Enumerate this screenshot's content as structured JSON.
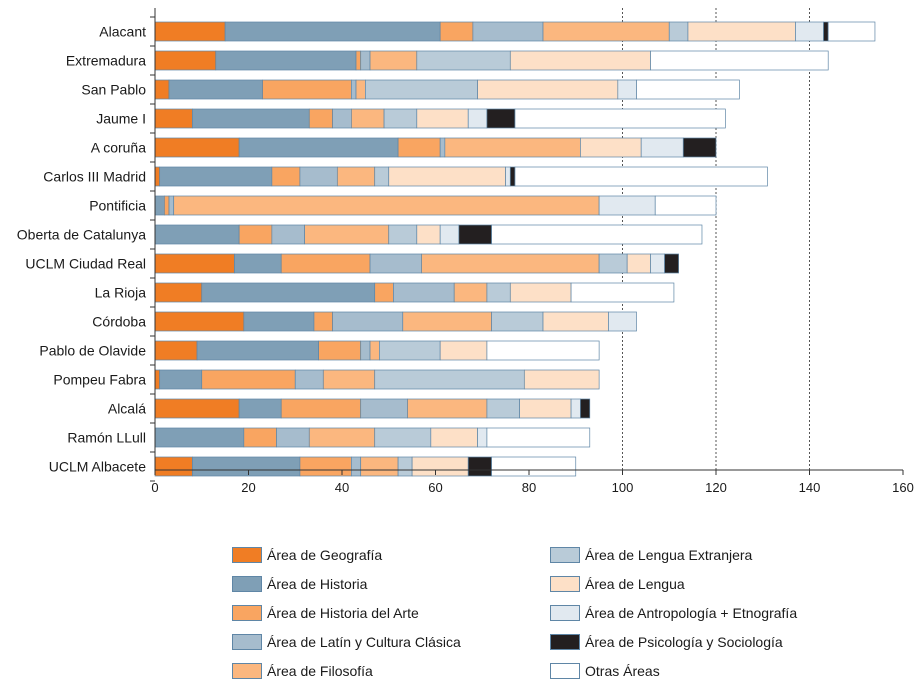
{
  "chart_data": {
    "type": "bar",
    "orientation": "horizontal",
    "stacked": true,
    "title": "",
    "xlabel": "",
    "ylabel": "",
    "xlim": [
      0,
      160
    ],
    "xticks": [
      "0",
      "20",
      "40",
      "60",
      "80",
      "100",
      "120",
      "140",
      "160"
    ],
    "grid": "dashed vertical lines at 100, 120, 140",
    "legend_position": "bottom",
    "categories": [
      "Alacant",
      "Extremadura",
      "San Pablo",
      "Jaume I",
      "A coruña",
      "Carlos III Madrid",
      "Pontificia",
      "Oberta de Catalunya",
      "UCLM Ciudad Real",
      "La Rioja",
      "Córdoba",
      "Pablo de Olavide",
      "Pompeu Fabra",
      "Alcalá",
      "Ramón LLull",
      "UCLM Albacete"
    ],
    "series": [
      {
        "name": "Área de Geografía",
        "color": "#f07d24",
        "values": [
          15,
          13,
          3,
          8,
          18,
          1,
          0,
          0,
          17,
          10,
          19,
          9,
          1,
          18,
          0,
          8
        ]
      },
      {
        "name": "Área de Historia",
        "color": "#7f9fb6",
        "values": [
          46,
          30,
          20,
          25,
          34,
          24,
          2,
          18,
          10,
          37,
          15,
          26,
          9,
          9,
          19,
          23
        ]
      },
      {
        "name": "Área de Historia del Arte",
        "color": "#f9a561",
        "values": [
          7,
          1,
          19,
          5,
          9,
          6,
          1,
          7,
          19,
          4,
          4,
          9,
          20,
          17,
          7,
          11
        ]
      },
      {
        "name": "Área de Latín y Cultura Clásica",
        "color": "#a6bccd",
        "values": [
          15,
          2,
          1,
          4,
          1,
          8,
          1,
          7,
          11,
          13,
          15,
          2,
          6,
          10,
          7,
          2
        ]
      },
      {
        "name": "Área de Filosofía",
        "color": "#fbb77f",
        "values": [
          27,
          10,
          2,
          7,
          29,
          8,
          91,
          18,
          38,
          7,
          19,
          2,
          11,
          17,
          14,
          8
        ]
      },
      {
        "name": "Área de Lengua Extranjera",
        "color": "#b9cbd8",
        "values": [
          4,
          20,
          24,
          7,
          0,
          3,
          0,
          6,
          6,
          5,
          11,
          13,
          32,
          7,
          12,
          3
        ]
      },
      {
        "name": "Área de Lengua",
        "color": "#fde0c7",
        "values": [
          23,
          30,
          30,
          11,
          13,
          25,
          0,
          5,
          5,
          13,
          14,
          10,
          16,
          11,
          10,
          12
        ]
      },
      {
        "name": "Área de Antropología + Etnografía",
        "color": "#e1e9f0",
        "values": [
          6,
          0,
          4,
          4,
          9,
          1,
          12,
          4,
          3,
          0,
          6,
          0,
          0,
          2,
          2,
          0
        ]
      },
      {
        "name": "Área de Psicología y Sociología",
        "color": "#231f20",
        "values": [
          1,
          0,
          0,
          6,
          7,
          1,
          0,
          7,
          3,
          0,
          0,
          0,
          0,
          2,
          0,
          5
        ]
      },
      {
        "name": "Otras Áreas",
        "color": "#ffffff",
        "values": [
          10,
          38,
          22,
          45,
          0,
          54,
          13,
          45,
          0,
          22,
          0,
          24,
          0,
          0,
          22,
          18
        ]
      }
    ]
  },
  "legend": {
    "col1": [
      {
        "label": "Área de Geografía",
        "color": "#f07d24"
      },
      {
        "label": "Área de Historia",
        "color": "#7f9fb6"
      },
      {
        "label": "Área de Historia del Arte",
        "color": "#f9a561"
      },
      {
        "label": "Área de Latín y Cultura Clásica",
        "color": "#a6bccd"
      },
      {
        "label": "Área de Filosofía",
        "color": "#fbb77f"
      }
    ],
    "col2": [
      {
        "label": "Área de Lengua Extranjera",
        "color": "#b9cbd8"
      },
      {
        "label": "Área de Lengua",
        "color": "#fde0c7"
      },
      {
        "label": "Área de Antropología + Etnografía",
        "color": "#e1e9f0"
      },
      {
        "label": "Área de Psicología y Sociología",
        "color": "#231f20"
      },
      {
        "label": "Otras Áreas",
        "color": "#ffffff"
      }
    ]
  },
  "colors": {
    "bar_border": "#5f86a6",
    "axis": "#333333",
    "grid": "#555555"
  }
}
